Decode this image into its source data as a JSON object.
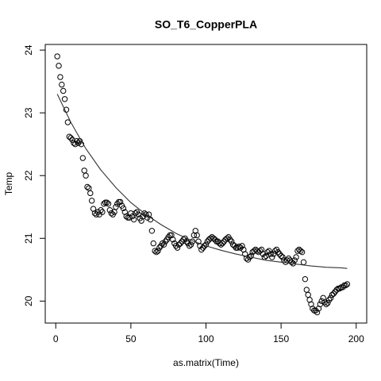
{
  "chart_data": {
    "type": "scatter",
    "title": "SO_T6_CopperPLA",
    "xlabel": "as.matrix(Time)",
    "ylabel": "Temp",
    "x": [
      1,
      2,
      3,
      4,
      5,
      6,
      7,
      8,
      9,
      10,
      11,
      12,
      13,
      14,
      15,
      16,
      17,
      18,
      19,
      20,
      21,
      22,
      23,
      24,
      25,
      26,
      27,
      28,
      29,
      30,
      31,
      32,
      33,
      34,
      35,
      36,
      37,
      38,
      39,
      40,
      41,
      42,
      43,
      44,
      45,
      46,
      47,
      48,
      49,
      50,
      51,
      52,
      53,
      54,
      55,
      56,
      57,
      58,
      59,
      60,
      61,
      62,
      63,
      64,
      65,
      66,
      67,
      68,
      69,
      70,
      71,
      72,
      73,
      74,
      75,
      76,
      77,
      78,
      79,
      80,
      81,
      82,
      83,
      84,
      85,
      86,
      87,
      88,
      89,
      90,
      91,
      92,
      93,
      94,
      95,
      96,
      97,
      98,
      99,
      100,
      101,
      102,
      103,
      104,
      105,
      106,
      107,
      108,
      109,
      110,
      111,
      112,
      113,
      114,
      115,
      116,
      117,
      118,
      119,
      120,
      121,
      122,
      123,
      124,
      125,
      126,
      127,
      128,
      129,
      130,
      131,
      132,
      133,
      134,
      135,
      136,
      137,
      138,
      139,
      140,
      141,
      142,
      143,
      144,
      145,
      146,
      147,
      148,
      149,
      150,
      151,
      152,
      153,
      154,
      155,
      156,
      157,
      158,
      159,
      160,
      161,
      162,
      163,
      164,
      165,
      166,
      167,
      168,
      169,
      170,
      171,
      172,
      173,
      174,
      175,
      176,
      177,
      178,
      179,
      180,
      181,
      182,
      183,
      184,
      185,
      186,
      187,
      188,
      189,
      190,
      191,
      192,
      193,
      194
    ],
    "values": [
      23.9,
      23.75,
      23.57,
      23.45,
      23.35,
      23.22,
      23.05,
      22.85,
      22.62,
      22.6,
      22.57,
      22.52,
      22.5,
      22.55,
      22.52,
      22.55,
      22.5,
      22.28,
      22.08,
      22.0,
      21.82,
      21.8,
      21.72,
      21.6,
      21.47,
      21.4,
      21.38,
      21.42,
      21.38,
      21.45,
      21.42,
      21.55,
      21.57,
      21.57,
      21.55,
      21.45,
      21.4,
      21.38,
      21.42,
      21.5,
      21.55,
      21.58,
      21.58,
      21.52,
      21.48,
      21.42,
      21.35,
      21.33,
      21.33,
      21.4,
      21.35,
      21.3,
      21.4,
      21.42,
      21.38,
      21.32,
      21.28,
      21.35,
      21.4,
      21.38,
      21.33,
      21.38,
      21.3,
      21.12,
      20.92,
      20.8,
      20.78,
      20.8,
      20.85,
      20.88,
      20.92,
      20.9,
      20.95,
      20.98,
      21.02,
      21.05,
      21.05,
      20.98,
      20.92,
      20.88,
      20.85,
      20.9,
      20.92,
      20.95,
      20.98,
      21.0,
      20.95,
      20.92,
      20.88,
      20.9,
      20.95,
      21.05,
      21.12,
      21.05,
      20.95,
      20.88,
      20.82,
      20.85,
      20.88,
      20.9,
      20.95,
      20.98,
      21.0,
      21.02,
      21.0,
      20.98,
      20.95,
      20.95,
      20.92,
      20.9,
      20.92,
      20.95,
      20.98,
      21.0,
      21.02,
      20.98,
      20.95,
      20.9,
      20.88,
      20.85,
      20.85,
      20.87,
      20.85,
      20.88,
      20.82,
      20.75,
      20.68,
      20.66,
      20.7,
      20.72,
      20.78,
      20.8,
      20.82,
      20.8,
      20.78,
      20.8,
      20.82,
      20.75,
      20.7,
      20.72,
      20.78,
      20.8,
      20.75,
      20.7,
      20.75,
      20.8,
      20.82,
      20.78,
      20.75,
      20.72,
      20.7,
      20.65,
      20.62,
      20.65,
      20.68,
      20.65,
      20.62,
      20.6,
      20.65,
      20.7,
      20.8,
      20.82,
      20.8,
      20.78,
      20.62,
      20.35,
      20.18,
      20.1,
      20.02,
      19.95,
      19.88,
      19.85,
      19.85,
      19.82,
      19.88,
      19.95,
      20.0,
      20.05,
      19.98,
      19.95,
      19.97,
      20.02,
      20.05,
      20.1,
      20.12,
      20.15,
      20.18,
      20.2,
      20.2,
      20.22,
      20.22,
      20.25,
      20.25,
      20.27
    ],
    "fit": {
      "x": [
        1,
        10,
        20,
        30,
        40,
        50,
        60,
        70,
        80,
        90,
        100,
        110,
        120,
        130,
        140,
        150,
        160,
        170,
        180,
        190,
        194
      ],
      "values": [
        23.3,
        22.85,
        22.43,
        22.09,
        21.81,
        21.57,
        21.38,
        21.22,
        21.08,
        20.97,
        20.88,
        20.81,
        20.75,
        20.7,
        20.65,
        20.62,
        20.59,
        20.56,
        20.54,
        20.53,
        20.52
      ]
    },
    "color": "#000000",
    "xlim": [
      -7,
      207
    ],
    "ylim": [
      19.65,
      24.09
    ],
    "xticks": [
      0,
      50,
      100,
      150,
      200
    ],
    "yticks": [
      20,
      21,
      22,
      23,
      24
    ]
  }
}
